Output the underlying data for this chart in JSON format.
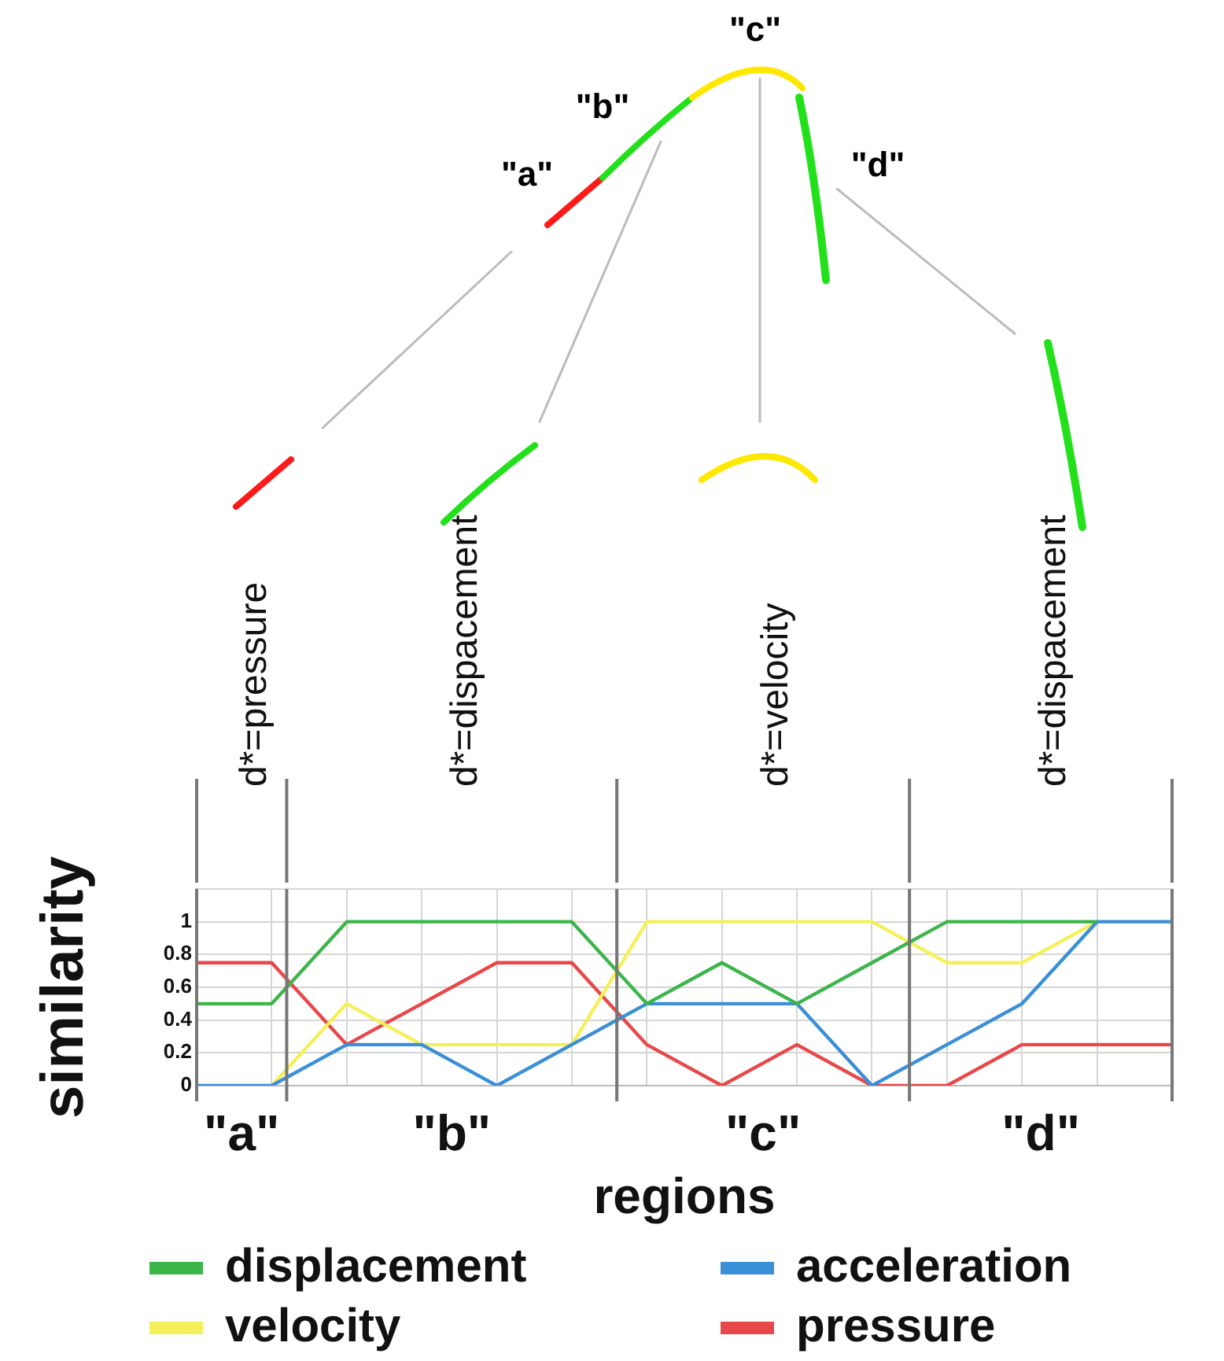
{
  "chart_data": {
    "type": "line",
    "xlabel": "regions",
    "ylabel": "similarity",
    "categories": [
      null,
      null,
      null,
      null,
      null,
      null,
      null,
      null,
      null,
      null,
      null,
      null,
      null,
      null
    ],
    "ylim": [
      0,
      1.2
    ],
    "yticks": [
      0,
      0.2,
      0.4,
      0.6,
      0.8,
      1,
      {
        "value": 1.2,
        "label": null
      }
    ],
    "tick_labels": "y",
    "grid": true,
    "legend": "bottom",
    "marker": "none",
    "line_style": "solid",
    "series": [
      {
        "name": "displacement",
        "color": "#3cb54a",
        "values": [
          0.5,
          0.5,
          1,
          1,
          1,
          1,
          0.5,
          0.75,
          0.5,
          0.75,
          1,
          1,
          1,
          null
        ]
      },
      {
        "name": "acceleration",
        "color": "#3a8fd6",
        "values": [
          0,
          0,
          0.25,
          0.25,
          0,
          0.25,
          0.5,
          0.5,
          0.5,
          0,
          0.25,
          0.5,
          1,
          1
        ]
      },
      {
        "name": "velocity",
        "color": "#f5f05a",
        "values": [
          null,
          0,
          0.5,
          0.25,
          0.25,
          0.25,
          1,
          1,
          1,
          1,
          0.75,
          0.75,
          1,
          null
        ]
      },
      {
        "name": "pressure",
        "color": "#e8484a",
        "values": [
          0.75,
          0.75,
          0.25,
          0.5,
          0.75,
          0.75,
          0.25,
          0,
          0.25,
          0,
          0,
          0.25,
          0.25,
          0.25
        ]
      }
    ],
    "annotations": [
      "\"a\"",
      "\"b\"",
      "\"c\"",
      "\"d\"",
      "d*=pressure",
      "d*=dispacement",
      "d*=velocity",
      "d*=dispacement",
      "\"a\"",
      "\"b\"",
      "\"c\"",
      "\"d\""
    ]
  }
}
